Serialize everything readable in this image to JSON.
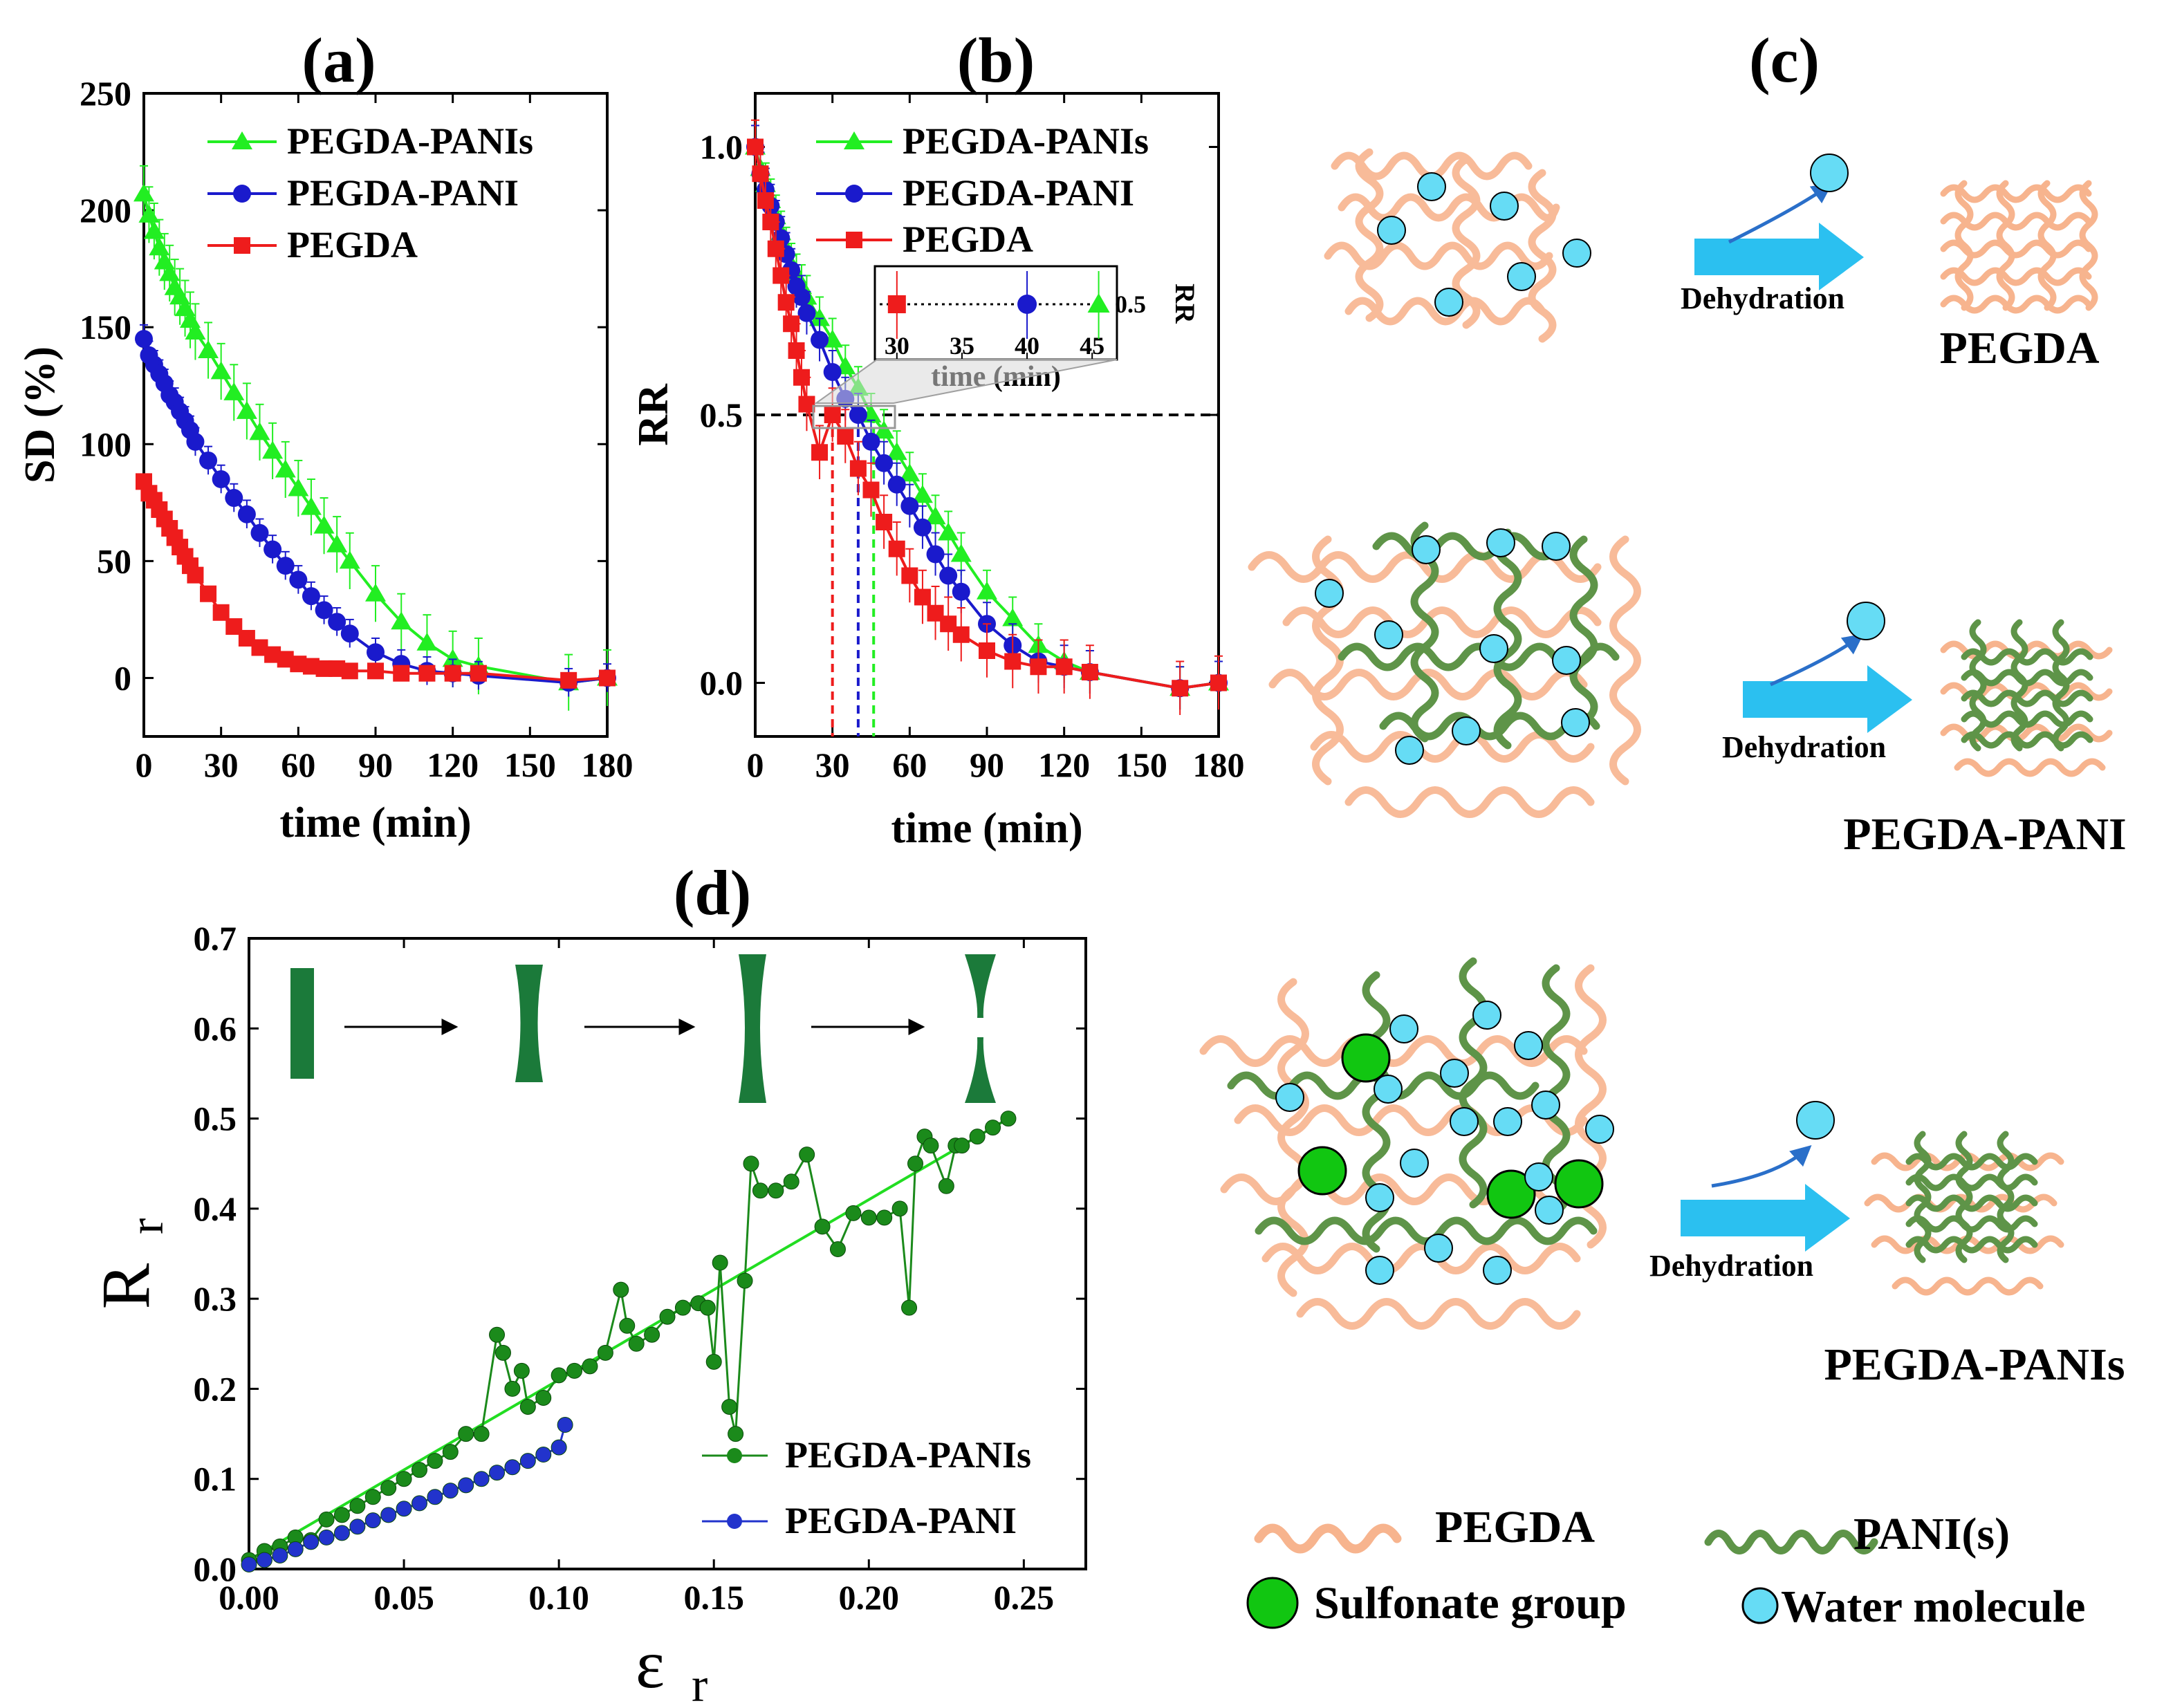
{
  "panels": {
    "a": "(a)",
    "b": "(b)",
    "c": "(c)",
    "d": "(d)"
  },
  "colors": {
    "pegda": "#ee1c1c",
    "pani": "#1a1acc",
    "panis": "#22ee22",
    "d_panis": "#1b8a1b",
    "d_fit": "#22dd22",
    "d_pani": "#2233cc",
    "pegda_chain": "#f7b48e",
    "pani_chain": "#5e9448",
    "water": "#66dcf5",
    "sulfonate": "#11c611",
    "arrow": "#2bc0f0"
  },
  "chart_data": [
    {
      "id": "a",
      "type": "line",
      "title": "(a)",
      "xlabel": "time (min)",
      "ylabel": "SD (%)",
      "xlim": [
        0,
        180
      ],
      "ylim": [
        -25,
        250
      ],
      "xticks": [
        0,
        30,
        60,
        90,
        120,
        150,
        180
      ],
      "yticks": [
        0,
        50,
        100,
        150,
        200,
        250
      ],
      "legend_position": "top-right",
      "series": [
        {
          "name": "PEGDA-PANIs",
          "color": "#22ee22",
          "marker": "triangle",
          "x": [
            0,
            2,
            4,
            6,
            8,
            10,
            12,
            14,
            16,
            18,
            20,
            25,
            30,
            35,
            40,
            45,
            50,
            55,
            60,
            65,
            70,
            75,
            80,
            90,
            100,
            110,
            120,
            130,
            165,
            180
          ],
          "y": [
            207,
            198,
            191,
            184,
            178,
            173,
            167,
            163,
            158,
            153,
            148,
            140,
            131,
            122,
            114,
            105,
            97,
            89,
            81,
            73,
            65,
            57,
            50,
            36,
            24,
            15,
            8,
            5,
            -2,
            0
          ],
          "err": 12
        },
        {
          "name": "PEGDA-PANI",
          "color": "#1a1acc",
          "marker": "circle",
          "x": [
            0,
            2,
            4,
            6,
            8,
            10,
            12,
            14,
            16,
            18,
            20,
            25,
            30,
            35,
            40,
            45,
            50,
            55,
            60,
            65,
            70,
            75,
            80,
            90,
            100,
            110,
            120,
            130,
            165,
            180
          ],
          "y": [
            145,
            138,
            134,
            130,
            126,
            121,
            118,
            114,
            110,
            106,
            101,
            93,
            85,
            77,
            70,
            62,
            55,
            48,
            42,
            35,
            29,
            24,
            19,
            11,
            6,
            3,
            2,
            1,
            -2,
            0
          ],
          "err": 6
        },
        {
          "name": "PEGDA",
          "color": "#ee1c1c",
          "marker": "square",
          "x": [
            0,
            2,
            4,
            6,
            8,
            10,
            12,
            14,
            16,
            18,
            20,
            25,
            30,
            35,
            40,
            45,
            50,
            55,
            60,
            65,
            70,
            75,
            80,
            90,
            100,
            110,
            120,
            130,
            165,
            180
          ],
          "y": [
            84,
            79,
            76,
            72,
            68,
            64,
            60,
            56,
            52,
            48,
            44,
            36,
            28,
            22,
            17,
            13,
            10,
            8,
            6,
            5,
            4,
            4,
            3,
            3,
            2,
            2,
            2,
            2,
            -1,
            0
          ],
          "err": 3
        }
      ]
    },
    {
      "id": "b",
      "type": "line",
      "title": "(b)",
      "xlabel": "time (min)",
      "ylabel": "RR",
      "xlim": [
        0,
        180
      ],
      "ylim": [
        -0.1,
        1.1
      ],
      "xticks": [
        0,
        30,
        60,
        90,
        120,
        150,
        180
      ],
      "yticks": [
        0.0,
        0.5,
        1.0
      ],
      "ytick_labels": [
        "0.0",
        "0.5",
        "1.0"
      ],
      "reference_y": 0.5,
      "half_times": {
        "PEGDA": 30,
        "PEGDA-PANI": 40,
        "PEGDA-PANIs": 46
      },
      "legend_position": "top-right",
      "series": [
        {
          "name": "PEGDA-PANIs",
          "color": "#22ee22",
          "marker": "triangle",
          "x": [
            0,
            2,
            4,
            6,
            8,
            10,
            12,
            14,
            16,
            18,
            20,
            25,
            30,
            35,
            40,
            45,
            50,
            55,
            60,
            65,
            70,
            75,
            80,
            90,
            100,
            110,
            120,
            130,
            165,
            180
          ],
          "y": [
            1.0,
            0.96,
            0.93,
            0.9,
            0.87,
            0.84,
            0.81,
            0.78,
            0.76,
            0.74,
            0.72,
            0.68,
            0.64,
            0.59,
            0.55,
            0.5,
            0.47,
            0.43,
            0.39,
            0.35,
            0.31,
            0.28,
            0.24,
            0.17,
            0.12,
            0.07,
            0.04,
            0.02,
            -0.01,
            0.0
          ],
          "err": 0.04
        },
        {
          "name": "PEGDA-PANI",
          "color": "#1a1acc",
          "marker": "circle",
          "x": [
            0,
            2,
            4,
            6,
            8,
            10,
            12,
            14,
            16,
            18,
            20,
            25,
            30,
            35,
            40,
            45,
            50,
            55,
            60,
            65,
            70,
            75,
            80,
            90,
            100,
            110,
            120,
            130,
            165,
            180
          ],
          "y": [
            1.0,
            0.95,
            0.92,
            0.89,
            0.86,
            0.83,
            0.8,
            0.77,
            0.74,
            0.72,
            0.69,
            0.64,
            0.58,
            0.53,
            0.5,
            0.45,
            0.41,
            0.37,
            0.33,
            0.29,
            0.24,
            0.2,
            0.17,
            0.11,
            0.07,
            0.04,
            0.03,
            0.02,
            -0.01,
            0.0
          ],
          "err": 0.04
        },
        {
          "name": "PEGDA",
          "color": "#ee1c1c",
          "marker": "square",
          "x": [
            0,
            2,
            4,
            6,
            8,
            10,
            12,
            14,
            16,
            18,
            20,
            25,
            30,
            35,
            40,
            45,
            50,
            55,
            60,
            65,
            70,
            75,
            80,
            90,
            100,
            110,
            120,
            130,
            165,
            180
          ],
          "y": [
            1.0,
            0.95,
            0.9,
            0.86,
            0.81,
            0.76,
            0.71,
            0.67,
            0.62,
            0.57,
            0.52,
            0.43,
            0.5,
            0.46,
            0.4,
            0.36,
            0.3,
            0.25,
            0.2,
            0.16,
            0.13,
            0.11,
            0.09,
            0.06,
            0.04,
            0.03,
            0.03,
            0.02,
            -0.01,
            0.0
          ],
          "err": 0.05
        }
      ],
      "inset": {
        "xlabel": "time (min)",
        "ylabel": "RR",
        "xlim": [
          29,
          46
        ],
        "xticks": [
          30,
          35,
          40,
          45
        ],
        "ytick_label": "0.5",
        "points": [
          {
            "x": 30,
            "y": 0.5,
            "color": "#ee1c1c",
            "marker": "square"
          },
          {
            "x": 40,
            "y": 0.5,
            "color": "#1a1acc",
            "marker": "circle"
          },
          {
            "x": 45.5,
            "y": 0.5,
            "color": "#22ee22",
            "marker": "triangle"
          }
        ]
      }
    },
    {
      "id": "d",
      "type": "scatter",
      "title": "(d)",
      "xlabel": "ε",
      "xlabel_sub": "r",
      "ylabel": "R",
      "ylabel_sub": "r",
      "xlim": [
        0,
        0.27
      ],
      "ylim": [
        0,
        0.7
      ],
      "xticks": [
        0.0,
        0.05,
        0.1,
        0.15,
        0.2,
        0.25
      ],
      "xtick_labels": [
        "0.00",
        "0.05",
        "0.10",
        "0.15",
        "0.20",
        "0.25"
      ],
      "yticks": [
        0.0,
        0.1,
        0.2,
        0.3,
        0.4,
        0.5,
        0.6,
        0.7
      ],
      "ytick_labels": [
        "0.0",
        "0.1",
        "0.2",
        "0.3",
        "0.4",
        "0.5",
        "0.6",
        "0.7"
      ],
      "legend_position": "bottom-right",
      "series": [
        {
          "name": "PEGDA-PANIs",
          "color": "#1b8a1b",
          "x": [
            0.0,
            0.005,
            0.01,
            0.015,
            0.02,
            0.025,
            0.03,
            0.035,
            0.04,
            0.045,
            0.05,
            0.055,
            0.06,
            0.065,
            0.07,
            0.075,
            0.08,
            0.082,
            0.085,
            0.088,
            0.09,
            0.095,
            0.1,
            0.105,
            0.11,
            0.115,
            0.12,
            0.122,
            0.125,
            0.13,
            0.135,
            0.14,
            0.145,
            0.148,
            0.15,
            0.152,
            0.155,
            0.157,
            0.16,
            0.162,
            0.165,
            0.17,
            0.175,
            0.18,
            0.185,
            0.19,
            0.195,
            0.2,
            0.205,
            0.21,
            0.213,
            0.215,
            0.218,
            0.22,
            0.225,
            0.228,
            0.23,
            0.235,
            0.24,
            0.245
          ],
          "y": [
            0.01,
            0.02,
            0.025,
            0.035,
            0.032,
            0.055,
            0.06,
            0.07,
            0.08,
            0.09,
            0.1,
            0.11,
            0.12,
            0.13,
            0.15,
            0.15,
            0.26,
            0.24,
            0.2,
            0.22,
            0.18,
            0.19,
            0.215,
            0.22,
            0.225,
            0.24,
            0.31,
            0.27,
            0.25,
            0.26,
            0.28,
            0.29,
            0.295,
            0.29,
            0.23,
            0.34,
            0.18,
            0.15,
            0.32,
            0.45,
            0.42,
            0.42,
            0.43,
            0.46,
            0.38,
            0.355,
            0.395,
            0.39,
            0.39,
            0.4,
            0.29,
            0.45,
            0.48,
            0.47,
            0.425,
            0.47,
            0.47,
            0.48,
            0.49,
            0.5
          ]
        },
        {
          "name": "PEGDA-PANI",
          "color": "#2233cc",
          "x": [
            0.0,
            0.005,
            0.01,
            0.015,
            0.02,
            0.025,
            0.03,
            0.035,
            0.04,
            0.045,
            0.05,
            0.055,
            0.06,
            0.065,
            0.07,
            0.075,
            0.08,
            0.085,
            0.09,
            0.095,
            0.1,
            0.102
          ],
          "y": [
            0.005,
            0.01,
            0.015,
            0.022,
            0.03,
            0.035,
            0.04,
            0.047,
            0.054,
            0.06,
            0.067,
            0.073,
            0.08,
            0.087,
            0.093,
            0.1,
            0.107,
            0.113,
            0.12,
            0.127,
            0.135,
            0.16
          ]
        }
      ],
      "fit": {
        "x": [
          0.0,
          0.245
        ],
        "y": [
          0.01,
          0.5
        ],
        "color": "#22dd22"
      }
    }
  ],
  "schematic": {
    "dehydration": "Dehydration",
    "row1_label": "PEGDA",
    "row2_label": "PEGDA-PANI",
    "row3_label": "PEGDA-PANIs"
  },
  "key": {
    "pegda": "PEGDA",
    "pani": "PANI(s)",
    "sulfonate": "Sulfonate group",
    "water": "Water molecule"
  }
}
